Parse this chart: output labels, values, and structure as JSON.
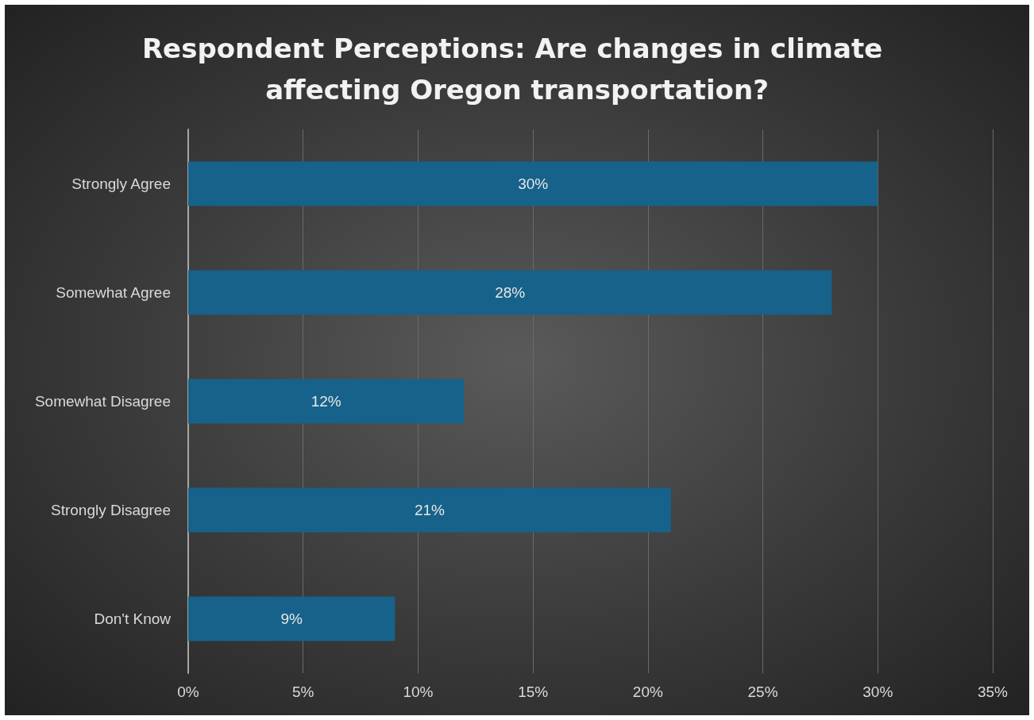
{
  "chart_data": {
    "type": "bar",
    "orientation": "horizontal",
    "title": "Respondent Perceptions: Are changes in climate affecting Oregon transportation?",
    "categories": [
      "Strongly Agree",
      "Somewhat Agree",
      "Somewhat Disagree",
      "Strongly Disagree",
      "Don't Know"
    ],
    "values": [
      30,
      28,
      12,
      21,
      9
    ],
    "value_labels": [
      "30%",
      "28%",
      "12%",
      "21%",
      "9%"
    ],
    "color": "#16628a",
    "xlim": [
      0,
      35
    ],
    "xticks": [
      {
        "value": 0,
        "label": "0%"
      },
      {
        "value": 5,
        "label": "5%"
      },
      {
        "value": 10,
        "label": "10%"
      },
      {
        "value": 15,
        "label": "15%"
      },
      {
        "value": 20,
        "label": "20%"
      },
      {
        "value": 25,
        "label": "25%"
      },
      {
        "value": 30,
        "label": "30%"
      },
      {
        "value": 35,
        "label": "35%"
      }
    ],
    "grid": "x"
  }
}
